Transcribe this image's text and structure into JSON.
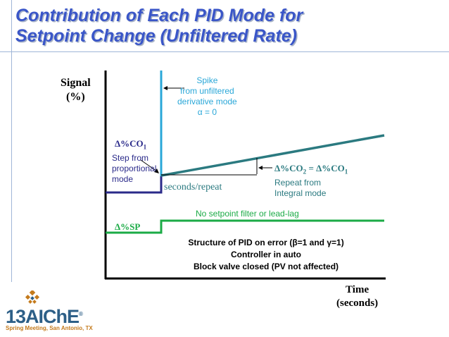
{
  "slide": {
    "title_line1": "Contribution of Each PID Mode for",
    "title_line2": "Setpoint Change (Unfiltered Rate)"
  },
  "axes": {
    "y_label_line1": "Signal",
    "y_label_line2": "(%)",
    "x_label_line1": "Time",
    "x_label_line2": "(seconds)"
  },
  "annotations": {
    "spike_line1": "Spike",
    "spike_line2": "from unfiltered",
    "spike_line3": "derivative mode",
    "spike_line4": "α = 0",
    "delta_co1": "Δ%CO",
    "delta_co1_sub": "1",
    "proportional_line1": "Step from",
    "proportional_line2": "proportional",
    "proportional_line3": "mode",
    "integral_eq_a": "Δ%CO",
    "integral_eq_a_sub": "2",
    "integral_eq_mid": " = Δ%CO",
    "integral_eq_b_sub": "1",
    "integral_line1": "Repeat from",
    "integral_line2": "Integral mode",
    "seconds_repeat": "seconds/repeat",
    "no_filter": "No setpoint filter or lead-lag",
    "delta_sp": "Δ%SP",
    "structure_line1": "Structure of PID on error (β=1 and γ=1)",
    "structure_line2": "Controller in auto",
    "structure_line3": "Block valve closed (PV not affected)"
  },
  "logo": {
    "number": "13",
    "name": "AIChE",
    "registered": "®",
    "subtitle": "Spring Meeting, San Antonio, TX"
  },
  "colors": {
    "title": "#3a56c8",
    "derivative": "#29a7d8",
    "proportional": "#2a2a8a",
    "integral": "#2b7a80",
    "setpoint": "#1bab46"
  }
}
